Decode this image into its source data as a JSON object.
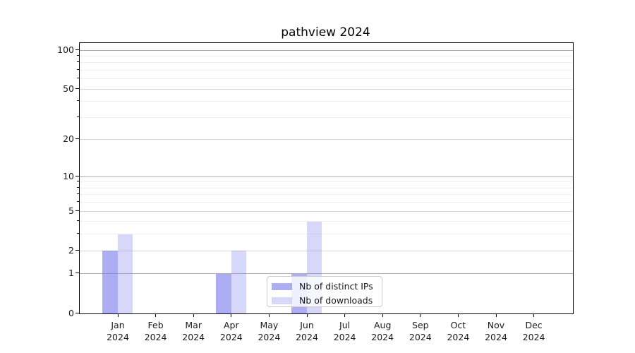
{
  "title": "pathview 2024",
  "chart_data": {
    "type": "bar",
    "title": "pathview 2024",
    "categories": [
      "Jan",
      "Feb",
      "Mar",
      "Apr",
      "May",
      "Jun",
      "Jul",
      "Aug",
      "Sep",
      "Oct",
      "Nov",
      "Dec"
    ],
    "category_year": "2024",
    "series": [
      {
        "name": "Nb of distinct IPs",
        "key": "distinct-ips",
        "base_color": "122,122,235",
        "alpha": 0.62,
        "values": [
          2,
          0,
          0,
          1,
          0,
          1,
          0,
          0,
          0,
          0,
          0,
          0
        ]
      },
      {
        "name": "Nb of downloads",
        "key": "downloads",
        "base_color": "122,122,235",
        "alpha": 0.3,
        "values": [
          3,
          0,
          0,
          2,
          0,
          4,
          0,
          0,
          0,
          0,
          0,
          0
        ]
      }
    ],
    "xlabel": "",
    "ylabel": "",
    "yscale": "log10(1+x)",
    "ylim": [
      0,
      113
    ],
    "y_major_ticks": [
      0,
      1,
      2,
      5,
      10,
      20,
      50,
      100
    ],
    "y_decade_gridlines": [
      1,
      10,
      100
    ],
    "y_mid_gridlines": [
      2,
      5,
      20,
      50
    ],
    "y_minor_gridlines": [
      3,
      4,
      6,
      7,
      8,
      9,
      30,
      40,
      60,
      70,
      80,
      90
    ],
    "grid": true,
    "legend_position": "lower center"
  },
  "colors": {
    "decade_grid": "#ababab",
    "mid_grid": "#d4d4d4",
    "minor_grid": "#efefef",
    "axis": "#000000",
    "tick_text": "#1a1a1a",
    "legend_border": "#cccccc"
  }
}
